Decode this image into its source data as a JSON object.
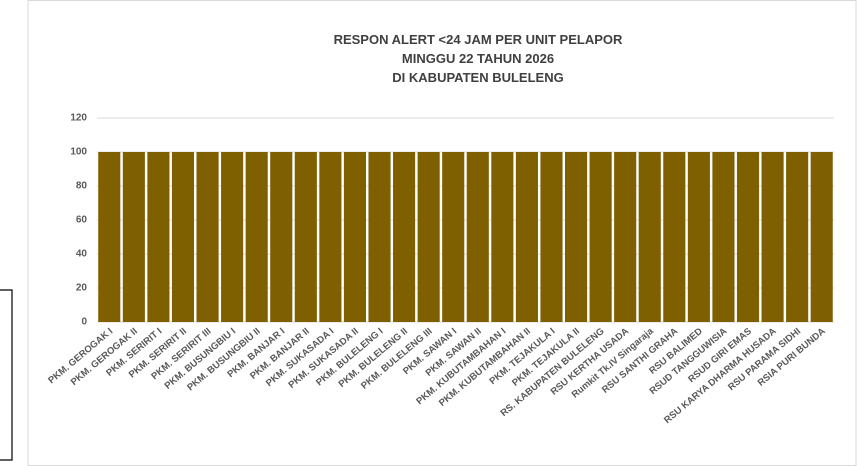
{
  "chart_data": {
    "type": "bar",
    "title": [
      "RESPON ALERT <24 JAM PER UNIT PELAPOR",
      "MINGGU 22 TAHUN 2026",
      "DI KABUPATEN BULELENG"
    ],
    "categories": [
      "PKM. GEROGAK I",
      "PKM. GEROGAK II",
      "PKM. SERIRIT I",
      "PKM. SERIRIT II",
      "PKM. SERIRIT III",
      "PKM. BUSUNGBIU I",
      "PKM. BUSUNGBIU II",
      "PKM. BANJAR I",
      "PKM. BANJAR II",
      "PKM. SUKASADA I",
      "PKM. SUKASADA II",
      "PKM. BULELENG I",
      "PKM. BULELENG II",
      "PKM. BULELENG III",
      "PKM. SAWAN I",
      "PKM. SAWAN II",
      "PKM. KUBUTAMBAHAN I",
      "PKM. KUBUTAMBAHAN II",
      "PKM. TEJAKULA I",
      "PKM. TEJAKULA II",
      "RS. KABUPATEN BULELENG",
      "RSU KERTHA USADA",
      "Rumkit Tk.IV Singaraja",
      "RSU SANTHI GRAHA",
      "RSU BALIMED",
      "RSUD TANGGUWISIA",
      "RSUD GIRI EMAS",
      "RSU KARYA DHARMA HUSADA",
      "RSU PARAMA SIDHI",
      "RSIA PURI BUNDA"
    ],
    "values": [
      100,
      100,
      100,
      100,
      100,
      100,
      100,
      100,
      100,
      100,
      100,
      100,
      100,
      100,
      100,
      100,
      100,
      100,
      100,
      100,
      100,
      100,
      100,
      100,
      100,
      100,
      100,
      100,
      100,
      100
    ],
    "color": "#7f6000",
    "ylim": [
      0,
      120
    ],
    "yticks": [
      0,
      20,
      40,
      60,
      80,
      100,
      120
    ],
    "grid": true
  }
}
